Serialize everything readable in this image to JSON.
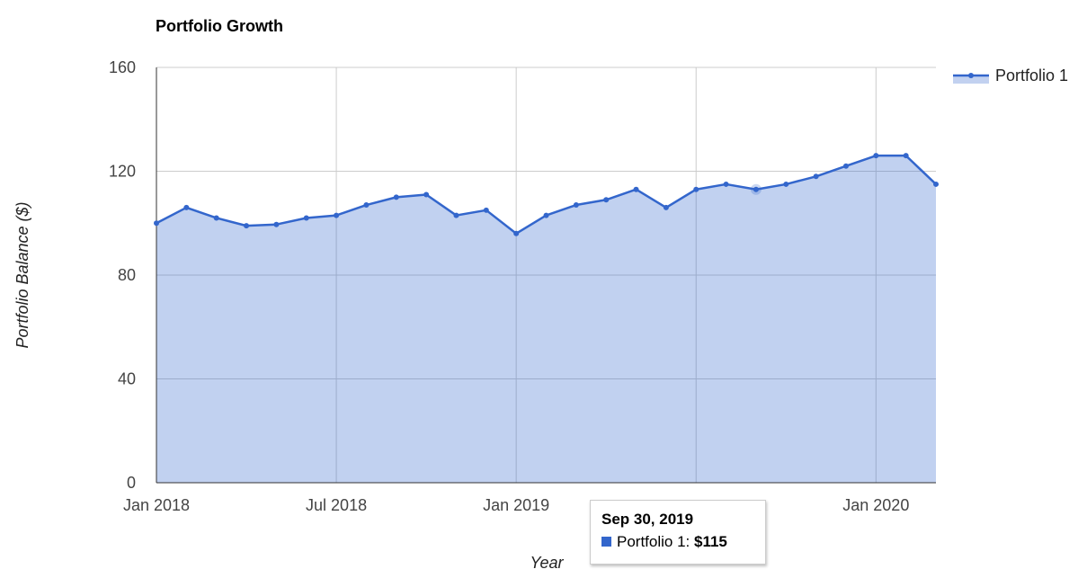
{
  "chart_data": {
    "type": "area",
    "title": "Portfolio Growth",
    "xlabel": "Year",
    "ylabel": "Portfolio Balance ($)",
    "ylim": [
      0,
      160
    ],
    "yticks": [
      "0",
      "40",
      "80",
      "120",
      "160"
    ],
    "xticks": [
      "Jan 2018",
      "Jul 2018",
      "Jan 2019",
      "Jan 2020"
    ],
    "grid": true,
    "legend_position": "right",
    "series": [
      {
        "name": "Portfolio 1",
        "color": "#3366cc",
        "x": [
          "Jan 2018",
          "Feb 2018",
          "Mar 2018",
          "Apr 2018",
          "May 2018",
          "Jun 2018",
          "Jul 2018",
          "Aug 2018",
          "Sep 2018",
          "Oct 2018",
          "Nov 2018",
          "Dec 2018",
          "Jan 2019",
          "Feb 2019",
          "Mar 2019",
          "Apr 2019",
          "May 2019",
          "Jun 2019",
          "Jul 2019",
          "Aug 2019",
          "Sep 2019",
          "Oct 2019",
          "Nov 2019",
          "Dec 2019",
          "Jan 2020",
          "Feb 2020",
          "Mar 2020"
        ],
        "values": [
          100,
          106,
          102,
          99,
          99.5,
          102,
          103,
          107,
          110,
          111,
          103,
          105,
          96,
          103,
          107,
          109,
          113,
          106,
          113,
          115,
          113,
          115,
          118,
          122,
          126,
          126,
          115
        ]
      }
    ],
    "tooltip": {
      "date": "Sep 30, 2019",
      "series_label": "Portfolio 1: ",
      "value": "$115"
    }
  }
}
